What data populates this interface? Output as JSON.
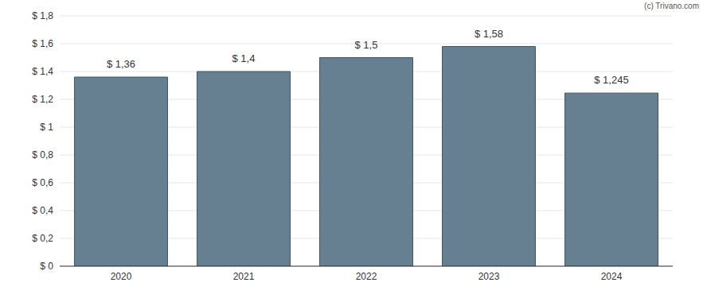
{
  "chart_data": {
    "type": "bar",
    "annotations": [
      "(c) Trivano.com"
    ],
    "categories": [
      "2020",
      "2021",
      "2022",
      "2023",
      "2024"
    ],
    "values": [
      1.36,
      1.4,
      1.5,
      1.58,
      1.245
    ],
    "value_labels": [
      "$ 1,36",
      "$ 1,4",
      "$ 1,5",
      "$ 1,58",
      "$ 1,245"
    ],
    "data_labels": true,
    "color": "#667f91",
    "ylim": [
      0,
      1.8
    ],
    "yticks": [
      {
        "value": 0,
        "label": "$ 0"
      },
      {
        "value": 0.2,
        "label": "$ 0,2"
      },
      {
        "value": 0.4,
        "label": "$ 0,4"
      },
      {
        "value": 0.6,
        "label": "$ 0,6"
      },
      {
        "value": 0.8,
        "label": "$ 0,8"
      },
      {
        "value": 1,
        "label": "$ 1"
      },
      {
        "value": 1.2,
        "label": "$ 1,2"
      },
      {
        "value": 1.4,
        "label": "$ 1,4"
      },
      {
        "value": 1.6,
        "label": "$ 1,6"
      },
      {
        "value": 1.8,
        "label": "$ 1,8"
      }
    ],
    "grid": true
  }
}
